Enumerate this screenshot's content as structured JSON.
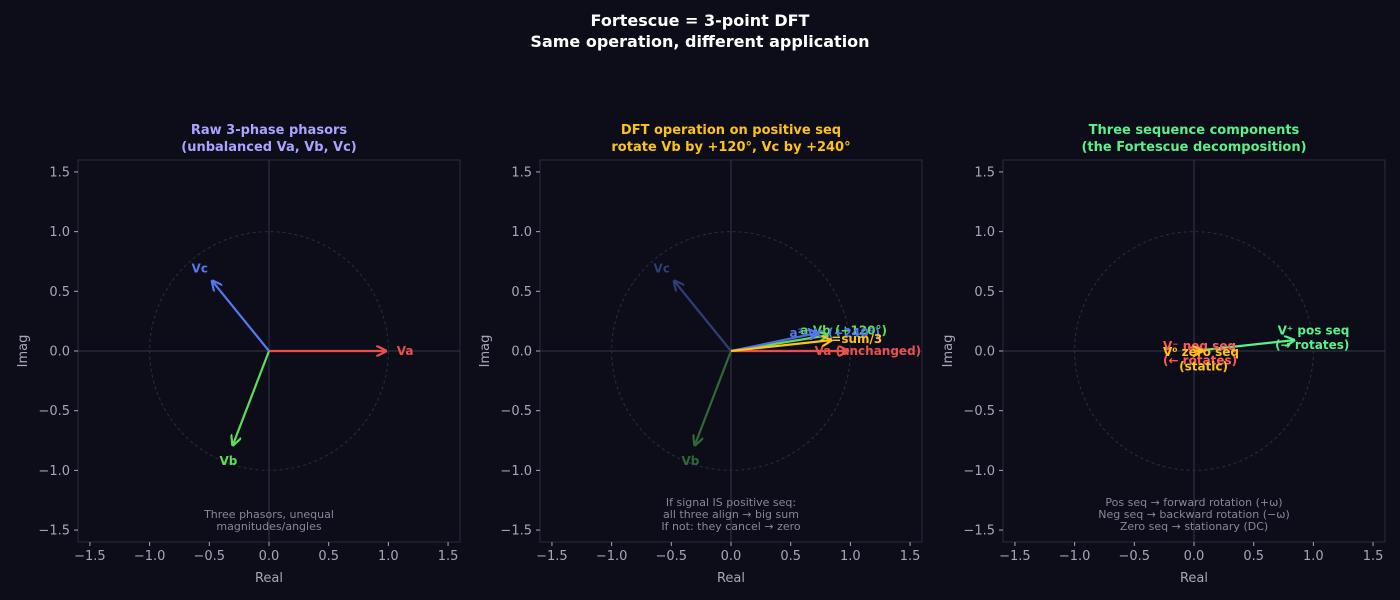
{
  "figure": {
    "title_lines": [
      "Fortescue = 3-point DFT",
      "Same operation, different application"
    ]
  },
  "colors": {
    "background": "#0c0d18",
    "axes_bg": "#0c0d18",
    "spine": "#2a2c3c",
    "zero_line": "#35374a",
    "unit_circle": "#2c2e40",
    "tick_text": "#a4a7b5",
    "note_text": "#85889a",
    "title_text": "#ffffff"
  },
  "chart_data": [
    {
      "type": "scatter",
      "subtype": "phasor-diagram",
      "title_lines": [
        "Raw 3-phase phasors",
        "(unbalanced Va, Vb, Vc)"
      ],
      "title_color": "#a8a4ff",
      "xlabel": "Real",
      "ylabel": "Imag",
      "xlim": [
        -1.6,
        1.6
      ],
      "ylim": [
        -1.6,
        1.6
      ],
      "xticks": [
        "−1.5",
        "−1.0",
        "−0.5",
        "0.0",
        "0.5",
        "1.0",
        "1.5"
      ],
      "yticks": [
        "1.5",
        "1.0",
        "0.5",
        "0.0",
        "−0.5",
        "−1.0",
        "−1.5"
      ],
      "grid": false,
      "unit_circle": true,
      "phasors": [
        {
          "name": "Va",
          "x": 0.97,
          "y": 0.0,
          "color": "#e8504c",
          "opacity": 1,
          "label": "Va",
          "label_x": 1.07,
          "label_y": 0.0,
          "anchor": "start"
        },
        {
          "name": "Vb",
          "x": -0.3,
          "y": -0.78,
          "color": "#5cde5c",
          "opacity": 1,
          "label": "Vb",
          "label_x": -0.34,
          "label_y": -0.92,
          "anchor": "middle"
        },
        {
          "name": "Vc",
          "x": -0.47,
          "y": 0.58,
          "color": "#5578f0",
          "opacity": 1,
          "label": "Vc",
          "label_x": -0.58,
          "label_y": 0.69,
          "anchor": "middle"
        }
      ],
      "note_lines": [
        "Three phasors, unequal",
        "magnitudes/angles"
      ]
    },
    {
      "type": "scatter",
      "subtype": "phasor-diagram",
      "title_lines": [
        "DFT operation on positive seq",
        "rotate Vb by +120°, Vc by +240°"
      ],
      "title_color": "#ffc21a",
      "xlabel": "Real",
      "ylabel": "Imag",
      "xlim": [
        -1.6,
        1.6
      ],
      "ylim": [
        -1.6,
        1.6
      ],
      "xticks": [
        "−1.5",
        "−1.0",
        "−0.5",
        "0.0",
        "0.5",
        "1.0",
        "1.5"
      ],
      "yticks": [
        "1.5",
        "1.0",
        "0.5",
        "0.0",
        "−0.5",
        "−1.0",
        "−1.5"
      ],
      "grid": false,
      "unit_circle": true,
      "phasors": [
        {
          "name": "Vb",
          "x": -0.3,
          "y": -0.78,
          "color": "#2e6a36",
          "opacity": 1,
          "label": "Vb",
          "label_x": -0.34,
          "label_y": -0.92,
          "anchor": "middle"
        },
        {
          "name": "Vc",
          "x": -0.47,
          "y": 0.58,
          "color": "#2e3e78",
          "opacity": 1,
          "label": "Vc",
          "label_x": -0.58,
          "label_y": 0.69,
          "anchor": "middle"
        },
        {
          "name": "a·Vb",
          "x": 0.8,
          "y": 0.13,
          "color": "#5cde5c",
          "opacity": 1,
          "label": "a·Vb (+120°)",
          "label_x": 0.58,
          "label_y": 0.17,
          "anchor": "start"
        },
        {
          "name": "a²·Vc",
          "x": 0.72,
          "y": 0.15,
          "color": "#5578f0",
          "opacity": 0.9,
          "label": "a²·Vc (+240°)",
          "label_x": 0.49,
          "label_y": 0.15,
          "anchor": "start"
        },
        {
          "name": "Va",
          "x": 0.97,
          "y": 0.0,
          "color": "#e8504c",
          "opacity": 1,
          "label": "Va (unchanged)",
          "label_x": 0.7,
          "label_y": 0.0,
          "anchor": "start"
        },
        {
          "name": "sum/3",
          "x": 0.83,
          "y": 0.09,
          "color": "#ffc21a",
          "opacity": 1,
          "label": "=sum/3",
          "label_x": 0.84,
          "label_y": 0.1,
          "anchor": "start"
        }
      ],
      "note_lines": [
        "If signal IS positive seq:",
        "all three align → big sum",
        "If not: they cancel → zero"
      ]
    },
    {
      "type": "scatter",
      "subtype": "phasor-diagram",
      "title_lines": [
        "Three sequence components",
        "(the Fortescue decomposition)"
      ],
      "title_color": "#5cf08a",
      "xlabel": "Real",
      "ylabel": "Imag",
      "xlim": [
        -1.6,
        1.6
      ],
      "ylim": [
        -1.6,
        1.6
      ],
      "xticks": [
        "−1.5",
        "−1.0",
        "−0.5",
        "0.0",
        "0.5",
        "1.0",
        "1.5"
      ],
      "yticks": [
        "1.5",
        "1.0",
        "0.5",
        "0.0",
        "−0.5",
        "−1.0",
        "−1.5"
      ],
      "grid": false,
      "unit_circle": true,
      "phasors": [
        {
          "name": "V+",
          "x": 0.83,
          "y": 0.09,
          "color": "#5cf08a",
          "opacity": 1,
          "label": "V⁺ pos seq",
          "label_x": 0.7,
          "label_y": 0.17,
          "anchor": "start",
          "label2": "(→ rotates)",
          "label2_x": 0.68,
          "label2_y": 0.05
        },
        {
          "name": "V-",
          "x": 0.04,
          "y": 0.02,
          "color": "#ff5a5a",
          "opacity": 1,
          "label": "V⁻ neg seq",
          "label_x": -0.26,
          "label_y": 0.04,
          "anchor": "start",
          "label2": "(← rotates)",
          "label2_x": -0.26,
          "label2_y": -0.08
        },
        {
          "name": "V0",
          "x": 0.06,
          "y": 0.0,
          "color": "#ffc21a",
          "opacity": 1,
          "label": "V⁰ zero seq",
          "label_x": -0.26,
          "label_y": -0.01,
          "anchor": "start",
          "label2": "(static)",
          "label2_x": 0.08,
          "label2_y": -0.13,
          "label2_anchor": "middle"
        }
      ],
      "note_lines": [
        "Pos seq → forward rotation (+ω)",
        "Neg seq → backward rotation (−ω)",
        "Zero seq → stationary (DC)"
      ]
    }
  ]
}
